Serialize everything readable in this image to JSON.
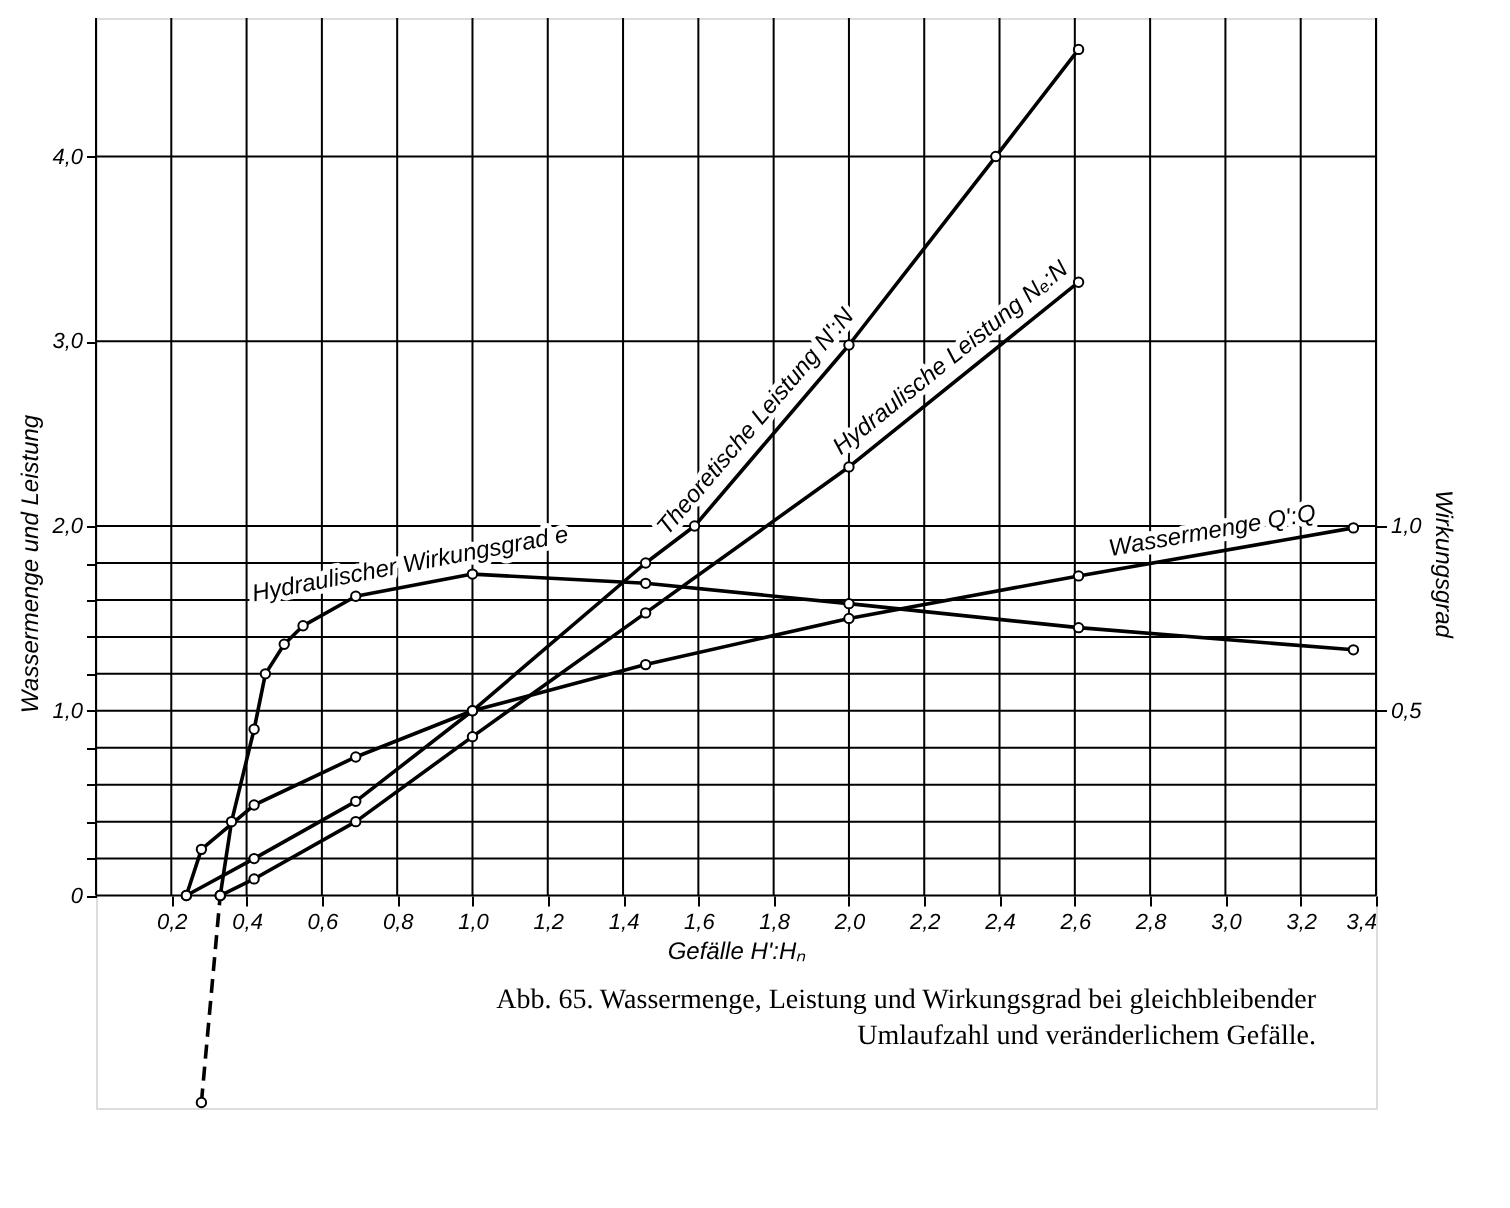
{
  "chart_data": {
    "type": "line",
    "xlabel": "Gefälle H':Hₙ",
    "ylabel": "Wassermenge und Leistung",
    "y2label": "Wirkungsgrad",
    "annotations": [
      "Abb. 65. Wassermenge, Leistung und Wirkungsgrad bei gleichbleibender Umlaufzahl und veränderlichem Gefälle."
    ],
    "xlim": [
      0,
      3.4
    ],
    "xticks": [
      {
        "value": 0.2,
        "label": "0,2"
      },
      {
        "value": 0.4,
        "label": "0,4"
      },
      {
        "value": 0.6,
        "label": "0,6"
      },
      {
        "value": 0.8,
        "label": "0,8"
      },
      {
        "value": 1.0,
        "label": "1,0"
      },
      {
        "value": 1.2,
        "label": "1,2"
      },
      {
        "value": 1.4,
        "label": "1,4"
      },
      {
        "value": 1.6,
        "label": "1,6"
      },
      {
        "value": 1.8,
        "label": "1,8"
      },
      {
        "value": 2.0,
        "label": "2,0"
      },
      {
        "value": 2.2,
        "label": "2,2"
      },
      {
        "value": 2.4,
        "label": "2,4"
      },
      {
        "value": 2.6,
        "label": "2,6"
      },
      {
        "value": 2.8,
        "label": "2,8"
      },
      {
        "value": 3.0,
        "label": "3,0"
      },
      {
        "value": 3.2,
        "label": "3,2"
      },
      {
        "value": 3.4,
        "label": "3,4"
      }
    ],
    "ylim": [
      -1.15,
      4.75
    ],
    "yticks": [
      {
        "value": 0,
        "label": "0"
      },
      {
        "value": 0.2,
        "label": null
      },
      {
        "value": 0.4,
        "label": null
      },
      {
        "value": 0.6,
        "label": null
      },
      {
        "value": 0.8,
        "label": null
      },
      {
        "value": 1.0,
        "label": "1,0"
      },
      {
        "value": 1.2,
        "label": null
      },
      {
        "value": 1.4,
        "label": null
      },
      {
        "value": 1.6,
        "label": null
      },
      {
        "value": 1.8,
        "label": null
      },
      {
        "value": 2.0,
        "label": "2,0"
      },
      {
        "value": 3.0,
        "label": "3,0"
      },
      {
        "value": 4.0,
        "label": "4,0"
      }
    ],
    "y2lim": [
      -0.575,
      2.375
    ],
    "y2ticks": [
      {
        "value": 0.5,
        "label": "0,5"
      },
      {
        "value": 1.0,
        "label": "1,0"
      }
    ],
    "grid": true,
    "marker": "circle",
    "line_style": "solid",
    "series": [
      {
        "name": "Theoretische Leistung N':N",
        "color": "#000000",
        "x": [
          0.24,
          0.42,
          0.69,
          1.0,
          1.46,
          1.59,
          2.0,
          2.39,
          2.61
        ],
        "values": [
          0,
          0.2,
          0.51,
          1.0,
          1.8,
          2.0,
          2.98,
          4.0,
          4.58
        ]
      },
      {
        "name": "Hydraulische Leistung Nₑ:N",
        "color": "#000000",
        "x": [
          0.33,
          0.42,
          0.69,
          1.0,
          1.46,
          2.0,
          2.61
        ],
        "values": [
          0,
          0.09,
          0.4,
          0.86,
          1.53,
          2.32,
          3.32
        ]
      },
      {
        "name": "Wassermenge Q':Q",
        "color": "#000000",
        "x": [
          0.24,
          0.28,
          0.42,
          0.69,
          1.0,
          1.46,
          2.0,
          2.61,
          3.34
        ],
        "values": [
          0,
          0.25,
          0.49,
          0.75,
          1.0,
          1.25,
          1.5,
          1.73,
          1.99
        ]
      },
      {
        "name": "Hydraulischer Wirkungsgrad e",
        "color": "#000000",
        "axis": "y2",
        "x": [
          0.33,
          0.36,
          0.42,
          0.45,
          0.5,
          0.55,
          0.69,
          1.0,
          1.46,
          2.0,
          2.61,
          3.34
        ],
        "values": [
          0,
          0.2,
          0.45,
          0.6,
          0.68,
          0.73,
          0.81,
          0.87,
          0.845,
          0.79,
          0.725,
          0.665
        ]
      },
      {
        "color": "#000000",
        "axis": "y2",
        "line_style": "dashed",
        "x": [
          0.28,
          0.33
        ],
        "values": [
          -0.56,
          0
        ]
      }
    ]
  }
}
